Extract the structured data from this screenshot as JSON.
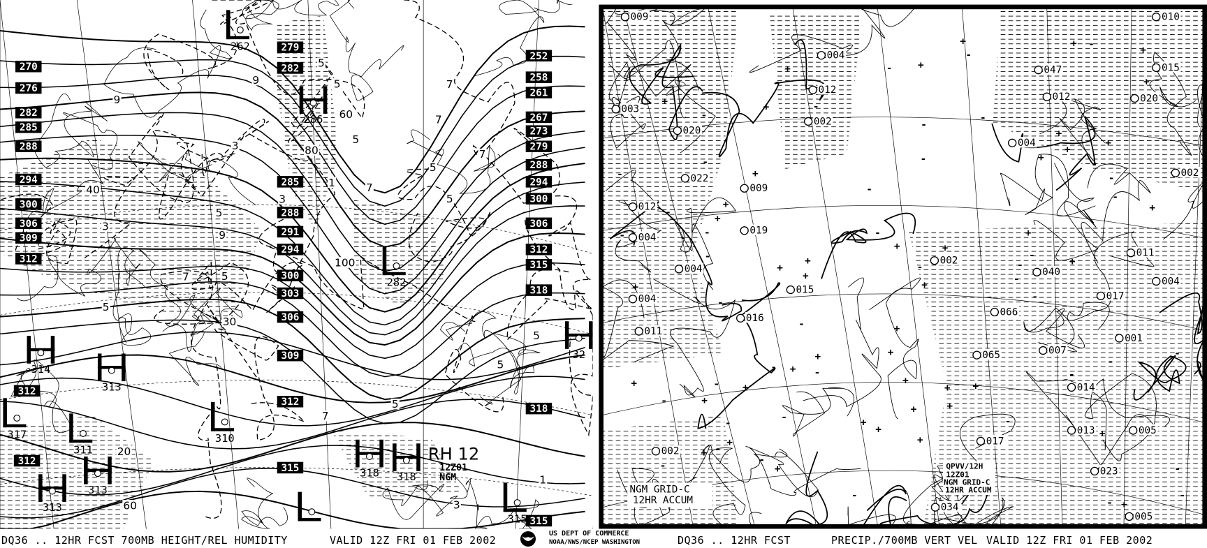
{
  "left_panel": {
    "label_title": "RH 12",
    "label_time": "12Z01",
    "label_model": "NGM",
    "height_labels": [
      "270",
      "276",
      "282",
      "285",
      "288",
      "294",
      "300",
      "306",
      "309",
      "312",
      "312",
      "312",
      "279",
      "282",
      "285",
      "288",
      "291",
      "294",
      "300",
      "303",
      "306",
      "309",
      "312",
      "315",
      "252",
      "258",
      "261",
      "267",
      "273",
      "279",
      "288",
      "294",
      "300",
      "306",
      "312",
      "315",
      "318",
      "318",
      "315"
    ],
    "highs": [
      {
        "symbol": "H",
        "value": "286"
      },
      {
        "symbol": "H",
        "value": "314"
      },
      {
        "symbol": "H",
        "value": "313"
      },
      {
        "symbol": "H",
        "value": "318"
      },
      {
        "symbol": "H",
        "value": "318"
      },
      {
        "symbol": "H",
        "value": "313"
      },
      {
        "symbol": "H",
        "value": "313"
      },
      {
        "symbol": "H",
        "value": "32"
      }
    ],
    "lows": [
      {
        "symbol": "L",
        "value": "262"
      },
      {
        "symbol": "L",
        "value": "282"
      },
      {
        "symbol": "L",
        "value": "310"
      },
      {
        "symbol": "L",
        "value": "311"
      },
      {
        "symbol": "L",
        "value": "317"
      },
      {
        "symbol": "L",
        "value": "315"
      },
      {
        "symbol": "L",
        "value": ""
      }
    ],
    "contour_labels": [
      "5",
      "7",
      "9",
      "3",
      "5",
      "60",
      "30",
      "40",
      "5",
      "7",
      "9",
      "3",
      "5",
      "7",
      "5",
      "3",
      "9",
      "7",
      "5",
      "3",
      "5",
      "1",
      "1",
      "5",
      "100",
      "80",
      "20",
      "5",
      "5",
      "7",
      "60",
      "5",
      "7"
    ]
  },
  "right_panel": {
    "precip_values": [
      "009",
      "010",
      "004",
      "047",
      "015",
      "012",
      "020",
      "003",
      "012",
      "002",
      "020",
      "004",
      "022",
      "009",
      "002",
      "012",
      "019",
      "004",
      "011",
      "002",
      "004",
      "040",
      "004",
      "015",
      "004",
      "017",
      "066",
      "016",
      "011",
      "001",
      "065",
      "007",
      "014",
      "002",
      "017",
      "013",
      "005",
      "023",
      "034",
      "005"
    ],
    "grid_label": [
      "NGM GRID-C",
      "12HR ACCUM"
    ],
    "inset_label": [
      "QPVV/12H",
      "12Z01",
      "NGM GRID-C",
      "12HR ACCUM"
    ]
  },
  "footer": {
    "left_product": "DQ36 .. 12HR FCST 700MB HEIGHT/REL HUMIDITY",
    "left_valid": "VALID 12Z FRI 01 FEB 2002",
    "agency_line1": "US DEPT OF COMMERCE",
    "agency_line2": "NOAA/NWS/NCEP WASHINGTON",
    "right_product": "DQ36 .. 12HR FCST",
    "right_field": "PRECIP./700MB VERT VEL",
    "right_valid": "VALID 12Z FRI 01 FEB 2002",
    "logo_icon": "noaa-logo-icon"
  },
  "colors": {
    "ink": "#000000",
    "background": "#ffffff"
  }
}
